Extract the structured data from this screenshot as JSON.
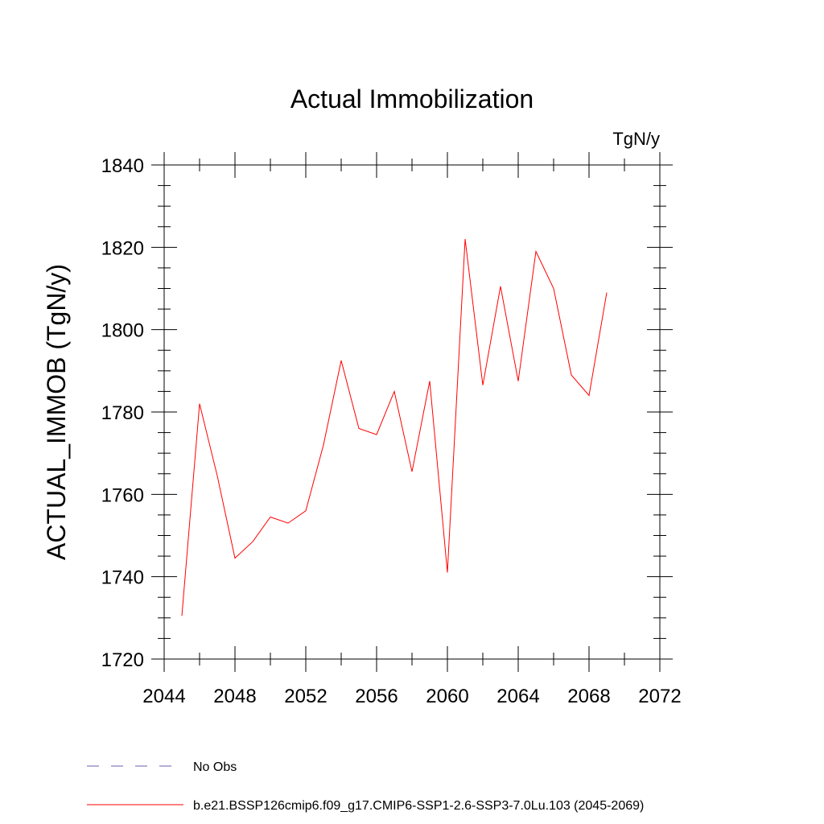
{
  "chart_data": {
    "type": "line",
    "title": "Actual Immobilization",
    "units": "TgN/y",
    "xlabel": "",
    "ylabel": "ACTUAL_IMMOB  (TgN/y)",
    "xlim": [
      2044,
      2072
    ],
    "ylim": [
      1720,
      1840
    ],
    "xticks": [
      2044,
      2048,
      2052,
      2056,
      2060,
      2064,
      2068,
      2072
    ],
    "yticks": [
      1720,
      1740,
      1760,
      1780,
      1800,
      1820,
      1840
    ],
    "x_minor_step": 2,
    "y_minor_step": 5,
    "grid": false,
    "legend_position": "bottom",
    "series": [
      {
        "name": "b.e21.BSSP126cmip6.f09_g17.CMIP6-SSP1-2.6-SSP3-7.0Lu.103 (2045-2069)",
        "color": "#ff0000",
        "dash": "solid",
        "x": [
          2045,
          2046,
          2047,
          2048,
          2049,
          2050,
          2051,
          2052,
          2053,
          2054,
          2055,
          2056,
          2057,
          2058,
          2059,
          2060,
          2061,
          2062,
          2063,
          2064,
          2065,
          2066,
          2067,
          2068,
          2069
        ],
        "values": [
          1730.5,
          1782,
          1764.5,
          1744.5,
          1748.5,
          1754.5,
          1753,
          1756,
          1772,
          1792.5,
          1776,
          1774.5,
          1785,
          1765.5,
          1787.5,
          1741,
          1822,
          1786.5,
          1810.5,
          1787.5,
          1819,
          1810,
          1789,
          1784,
          1809
        ]
      }
    ],
    "legend": [
      {
        "label": "No Obs",
        "color": "#6b5fb5",
        "dash": "dashed"
      },
      {
        "label": "b.e21.BSSP126cmip6.f09_g17.CMIP6-SSP1-2.6-SSP3-7.0Lu.103 (2045-2069)",
        "color": "#ff0000",
        "dash": "solid"
      }
    ]
  }
}
